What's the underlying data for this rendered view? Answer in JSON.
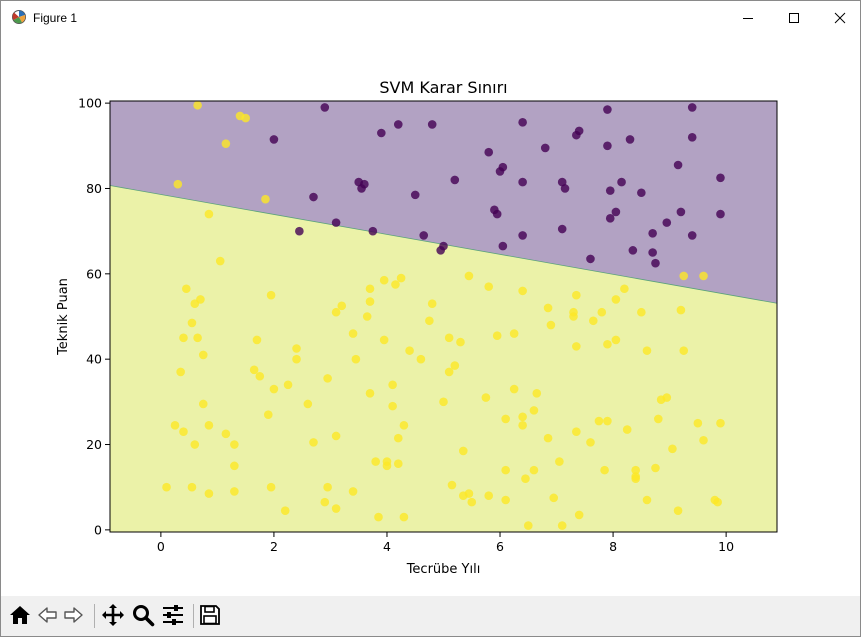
{
  "window": {
    "title": "Figure 1",
    "icons": {
      "app": "matplotlib-figure-icon",
      "minimize": "minimize-icon",
      "maximize": "maximize-icon",
      "close": "close-icon"
    }
  },
  "toolbar": {
    "buttons": [
      {
        "name": "home-button",
        "icon": "home-icon"
      },
      {
        "name": "back-button",
        "icon": "back-arrow-icon"
      },
      {
        "name": "forward-button",
        "icon": "forward-arrow-icon"
      },
      {
        "name": "pan-button",
        "icon": "move-icon"
      },
      {
        "name": "zoom-button",
        "icon": "magnifier-icon"
      },
      {
        "name": "configure-subplots-button",
        "icon": "sliders-icon"
      },
      {
        "name": "save-button",
        "icon": "floppy-disk-icon"
      }
    ]
  },
  "chart_data": {
    "type": "scatter",
    "title": "SVM Karar Sınırı",
    "xlabel": "Tecrübe Yılı",
    "ylabel": "Teknik Puan",
    "xlim": [
      -0.9,
      10.9
    ],
    "ylim": [
      -0.5,
      100.5
    ],
    "xticks": [
      "0",
      "2",
      "4",
      "6",
      "8",
      "10"
    ],
    "yticks": [
      "0",
      "20",
      "40",
      "60",
      "80",
      "100"
    ],
    "grid": false,
    "legend": "none",
    "decision_boundary": {
      "x": [
        -0.9,
        10.9
      ],
      "y": [
        80.7,
        53.1
      ]
    },
    "regions": {
      "above_color": "#b2a2c3",
      "below_color": "#ebf2a8",
      "boundary_color": "#5aa27a"
    },
    "series": [
      {
        "color": "#440154",
        "points": [
          [
            2.9,
            99
          ],
          [
            9.4,
            99
          ],
          [
            7.9,
            98.5
          ],
          [
            4.2,
            95
          ],
          [
            4.8,
            95
          ],
          [
            6.4,
            95.5
          ],
          [
            3.9,
            93
          ],
          [
            7.4,
            93.5
          ],
          [
            7.35,
            92.5
          ],
          [
            2,
            91.5
          ],
          [
            9.4,
            92
          ],
          [
            7.9,
            90
          ],
          [
            8.3,
            91.5
          ],
          [
            6.8,
            89.5
          ],
          [
            5.8,
            88.5
          ],
          [
            9.15,
            85.5
          ],
          [
            6.05,
            85
          ],
          [
            6,
            84
          ],
          [
            9.9,
            82.5
          ],
          [
            3.5,
            81.5
          ],
          [
            3.6,
            81
          ],
          [
            5.2,
            82
          ],
          [
            6.4,
            81.5
          ],
          [
            7.1,
            81.5
          ],
          [
            8.15,
            81.5
          ],
          [
            3.55,
            80
          ],
          [
            7.15,
            80
          ],
          [
            7.95,
            79.5
          ],
          [
            4.5,
            78.5
          ],
          [
            8.5,
            79
          ],
          [
            2.7,
            78
          ],
          [
            5.9,
            75
          ],
          [
            9.2,
            74.5
          ],
          [
            5.95,
            74
          ],
          [
            8.05,
            74.5
          ],
          [
            7.95,
            73
          ],
          [
            9.9,
            74
          ],
          [
            8.95,
            72
          ],
          [
            3.1,
            72
          ],
          [
            3.75,
            70
          ],
          [
            2.45,
            70
          ],
          [
            7.1,
            70.5
          ],
          [
            4.65,
            69
          ],
          [
            8.7,
            69.5
          ],
          [
            6.4,
            69
          ],
          [
            9.4,
            69
          ],
          [
            5,
            66.5
          ],
          [
            4.95,
            65.5
          ],
          [
            6.05,
            66.5
          ],
          [
            8.35,
            65.5
          ],
          [
            8.7,
            65
          ],
          [
            7.6,
            63.5
          ],
          [
            8.75,
            62.5
          ]
        ]
      },
      {
        "color": "#fde725",
        "points": [
          [
            0.65,
            99.5
          ],
          [
            1.4,
            97
          ],
          [
            1.5,
            96.5
          ],
          [
            1.15,
            90.5
          ],
          [
            0.3,
            81
          ],
          [
            1.85,
            77.5
          ],
          [
            0.85,
            74
          ],
          [
            1.05,
            63
          ],
          [
            9.25,
            59.5
          ],
          [
            9.6,
            59.5
          ],
          [
            0.45,
            56.5
          ],
          [
            0.6,
            53
          ],
          [
            0.7,
            54
          ],
          [
            1.95,
            55
          ],
          [
            3.2,
            52.5
          ],
          [
            3.1,
            51
          ],
          [
            3.7,
            53.5
          ],
          [
            3.7,
            56.5
          ],
          [
            3.95,
            58.5
          ],
          [
            4.15,
            57.5
          ],
          [
            4.25,
            59
          ],
          [
            4.8,
            53
          ],
          [
            5.45,
            59.5
          ],
          [
            5.8,
            57
          ],
          [
            6.4,
            56
          ],
          [
            6.85,
            52
          ],
          [
            7.3,
            51
          ],
          [
            7.3,
            50
          ],
          [
            7.35,
            55
          ],
          [
            7.65,
            49
          ],
          [
            7.8,
            51
          ],
          [
            8.05,
            54
          ],
          [
            8.2,
            56.5
          ],
          [
            8.5,
            51
          ],
          [
            9.2,
            51.5
          ],
          [
            0.55,
            48.5
          ],
          [
            0.65,
            45
          ],
          [
            0.4,
            45
          ],
          [
            0.75,
            41
          ],
          [
            1.7,
            44.5
          ],
          [
            2.4,
            42.5
          ],
          [
            2.4,
            40
          ],
          [
            3.4,
            46
          ],
          [
            3.45,
            40
          ],
          [
            3.65,
            50
          ],
          [
            3.95,
            44.5
          ],
          [
            4.4,
            42
          ],
          [
            4.6,
            40
          ],
          [
            4.75,
            49
          ],
          [
            5.1,
            45
          ],
          [
            5.2,
            38.5
          ],
          [
            5.3,
            44
          ],
          [
            5.95,
            45.5
          ],
          [
            6.25,
            46
          ],
          [
            6.9,
            48
          ],
          [
            7.35,
            43
          ],
          [
            7.9,
            43.5
          ],
          [
            8.05,
            44.5
          ],
          [
            8.6,
            42
          ],
          [
            9.25,
            42
          ],
          [
            0.35,
            37
          ],
          [
            0.75,
            29.5
          ],
          [
            1.65,
            37.5
          ],
          [
            1.75,
            36
          ],
          [
            2,
            33
          ],
          [
            2.25,
            34
          ],
          [
            2.6,
            29.5
          ],
          [
            2.95,
            35.5
          ],
          [
            3.7,
            32
          ],
          [
            4.1,
            34
          ],
          [
            4.1,
            29
          ],
          [
            5,
            30
          ],
          [
            5.1,
            37
          ],
          [
            5.75,
            31
          ],
          [
            6.25,
            33
          ],
          [
            6.4,
            26.5
          ],
          [
            6.6,
            28
          ],
          [
            6.65,
            32
          ],
          [
            8.8,
            26
          ],
          [
            8.85,
            30.5
          ],
          [
            8.95,
            31
          ],
          [
            0.25,
            24.5
          ],
          [
            0.4,
            23
          ],
          [
            0.6,
            20
          ],
          [
            0.85,
            24.5
          ],
          [
            1.15,
            22.5
          ],
          [
            1.3,
            20
          ],
          [
            1.3,
            15
          ],
          [
            1.9,
            27
          ],
          [
            2.7,
            20.5
          ],
          [
            3.1,
            22
          ],
          [
            3.8,
            16
          ],
          [
            4,
            16
          ],
          [
            4,
            15
          ],
          [
            4.2,
            15.5
          ],
          [
            4.2,
            21.5
          ],
          [
            4.3,
            24.5
          ],
          [
            5.35,
            18.5
          ],
          [
            6.1,
            26
          ],
          [
            6.4,
            24.5
          ],
          [
            6.1,
            14
          ],
          [
            6.6,
            14
          ],
          [
            6.85,
            21.5
          ],
          [
            7.05,
            16
          ],
          [
            7.35,
            23
          ],
          [
            7.6,
            20.5
          ],
          [
            7.75,
            25.5
          ],
          [
            7.85,
            14
          ],
          [
            7.9,
            25.5
          ],
          [
            8.25,
            23.5
          ],
          [
            8.4,
            14
          ],
          [
            8.4,
            12.5
          ],
          [
            8.4,
            12
          ],
          [
            8.75,
            14.5
          ],
          [
            9.05,
            19
          ],
          [
            9.5,
            25
          ],
          [
            9.6,
            21
          ],
          [
            9.9,
            25
          ],
          [
            0.1,
            10
          ],
          [
            0.55,
            10
          ],
          [
            0.85,
            8.5
          ],
          [
            1.3,
            9
          ],
          [
            1.95,
            10
          ],
          [
            2.2,
            4.5
          ],
          [
            2.9,
            6.5
          ],
          [
            2.95,
            10
          ],
          [
            3.1,
            5
          ],
          [
            3.4,
            9
          ],
          [
            3.85,
            3
          ],
          [
            4.3,
            3
          ],
          [
            5.15,
            10.5
          ],
          [
            5.35,
            8
          ],
          [
            5.45,
            8.5
          ],
          [
            5.5,
            6.5
          ],
          [
            5.8,
            8
          ],
          [
            6.1,
            7
          ],
          [
            6.45,
            12
          ],
          [
            6.5,
            1
          ],
          [
            6.95,
            7.5
          ],
          [
            7.1,
            1
          ],
          [
            7.4,
            3.5
          ],
          [
            8.6,
            7
          ],
          [
            9.15,
            4.5
          ],
          [
            9.8,
            7
          ],
          [
            9.85,
            6.5
          ]
        ]
      }
    ]
  }
}
